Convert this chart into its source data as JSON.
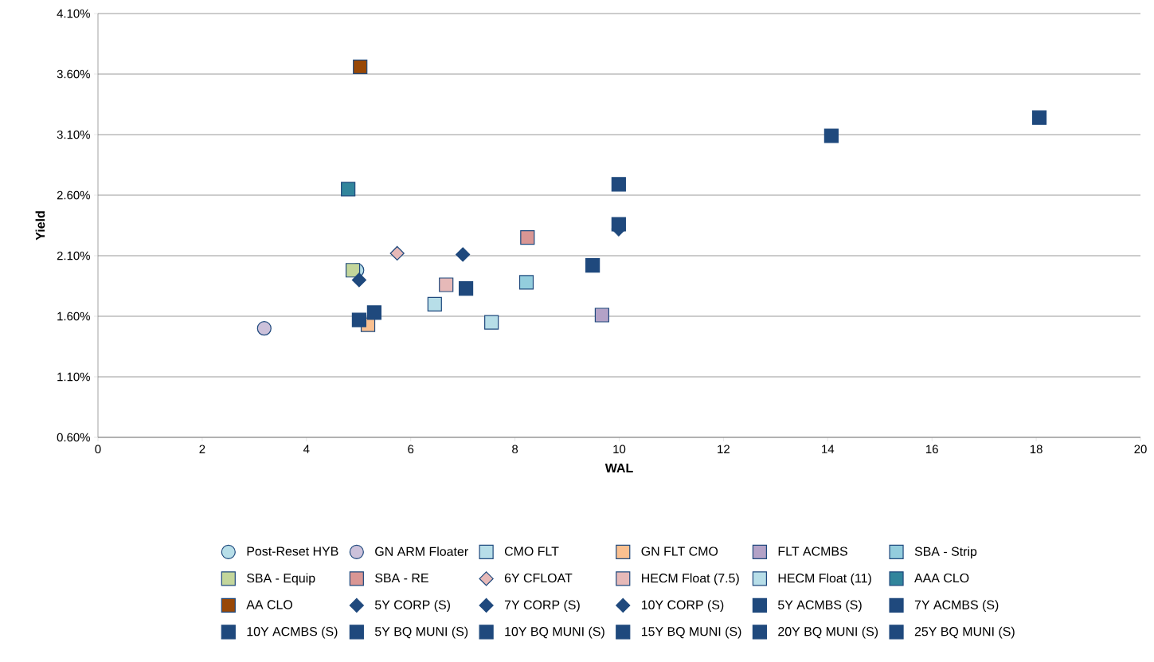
{
  "chart_data": {
    "type": "scatter",
    "xlabel": "WAL",
    "ylabel": "Yield",
    "xlim": [
      0,
      20
    ],
    "xticks": [
      0,
      2,
      4,
      6,
      8,
      10,
      12,
      14,
      16,
      18,
      20
    ],
    "ylim": [
      0.6,
      4.1
    ],
    "yticks": [
      {
        "value": 0.6,
        "label": "0.60%"
      },
      {
        "value": 1.1,
        "label": "1.10%"
      },
      {
        "value": 1.6,
        "label": "1.60%"
      },
      {
        "value": 2.1,
        "label": "2.10%"
      },
      {
        "value": 2.6,
        "label": "2.60%"
      },
      {
        "value": 3.1,
        "label": "3.10%"
      },
      {
        "value": 3.6,
        "label": "3.60%"
      },
      {
        "value": 4.1,
        "label": "4.10%"
      }
    ],
    "grid": "y",
    "legend": "bottom",
    "series": [
      {
        "name": "Post-Reset HYB",
        "color": "#b7dee8",
        "marker": "circle",
        "x": [
          4.97
        ],
        "values": [
          1.98
        ]
      },
      {
        "name": "GN ARM Floater",
        "color": "#ccc1da",
        "marker": "circle",
        "x": [
          3.19
        ],
        "values": [
          1.5
        ]
      },
      {
        "name": "CMO FLT",
        "color": "#b7dee8",
        "marker": "square",
        "x": [
          7.55
        ],
        "values": [
          1.55
        ]
      },
      {
        "name": "GN FLT CMO",
        "color": "#fac090",
        "marker": "square",
        "x": [
          5.18
        ],
        "values": [
          1.53
        ]
      },
      {
        "name": "FLT ACMBS",
        "color": "#b3a2c7",
        "marker": "square",
        "x": [
          9.67
        ],
        "values": [
          1.61
        ]
      },
      {
        "name": "SBA - Strip",
        "color": "#93cddd",
        "marker": "square",
        "x": [
          8.22
        ],
        "values": [
          1.88
        ]
      },
      {
        "name": "SBA - Equip",
        "color": "#c3d69b",
        "marker": "square",
        "x": [
          4.89
        ],
        "values": [
          1.98
        ]
      },
      {
        "name": "SBA - RE",
        "color": "#d99694",
        "marker": "square",
        "x": [
          8.24
        ],
        "values": [
          2.25
        ]
      },
      {
        "name": "6Y CFLOAT",
        "color": "#e6b9b8",
        "marker": "diamond",
        "x": [
          5.74
        ],
        "values": [
          2.12
        ]
      },
      {
        "name": "HECM Float (7.5)",
        "color": "#e6b9b8",
        "marker": "square",
        "x": [
          6.68
        ],
        "values": [
          1.86
        ]
      },
      {
        "name": "HECM Float (11)",
        "color": "#b7dee8",
        "marker": "square",
        "x": [
          6.46
        ],
        "values": [
          1.7
        ]
      },
      {
        "name": "AAA CLO",
        "color": "#31859c",
        "marker": "square",
        "x": [
          4.8
        ],
        "values": [
          2.65
        ]
      },
      {
        "name": "AA CLO",
        "color": "#984807",
        "marker": "square",
        "x": [
          5.03
        ],
        "values": [
          3.66
        ]
      },
      {
        "name": "5Y CORP (S)",
        "color": "#1f497d",
        "marker": "diamond",
        "x": [
          5.01
        ],
        "values": [
          1.9
        ]
      },
      {
        "name": "7Y CORP (S)",
        "color": "#1f497d",
        "marker": "diamond",
        "x": [
          7.0
        ],
        "values": [
          2.11
        ]
      },
      {
        "name": "10Y CORP (S)",
        "color": "#1f497d",
        "marker": "diamond",
        "x": [
          9.99
        ],
        "values": [
          2.32
        ]
      },
      {
        "name": "5Y ACMBS (S)",
        "color": "#1f497d",
        "marker": "square",
        "x": [
          5.3
        ],
        "values": [
          1.63
        ]
      },
      {
        "name": "7Y ACMBS (S)",
        "color": "#1f497d",
        "marker": "square",
        "x": [
          7.06
        ],
        "values": [
          1.83
        ]
      },
      {
        "name": "10Y ACMBS (S)",
        "color": "#1f497d",
        "marker": "square",
        "x": [
          9.49
        ],
        "values": [
          2.02
        ]
      },
      {
        "name": "5Y BQ MUNI (S)",
        "color": "#1f497d",
        "marker": "square",
        "x": [
          5.01
        ],
        "values": [
          1.57
        ]
      },
      {
        "name": "10Y BQ MUNI (S)",
        "color": "#1f497d",
        "marker": "square",
        "x": [
          9.99
        ],
        "values": [
          2.36
        ]
      },
      {
        "name": "15Y BQ MUNI (S)",
        "color": "#1f497d",
        "marker": "square",
        "x": [
          9.99
        ],
        "values": [
          2.69
        ]
      },
      {
        "name": "20Y BQ MUNI (S)",
        "color": "#1f497d",
        "marker": "square",
        "x": [
          14.07
        ],
        "values": [
          3.09
        ]
      },
      {
        "name": "25Y BQ MUNI (S)",
        "color": "#1f497d",
        "marker": "square",
        "x": [
          18.06
        ],
        "values": [
          3.24
        ]
      }
    ]
  }
}
